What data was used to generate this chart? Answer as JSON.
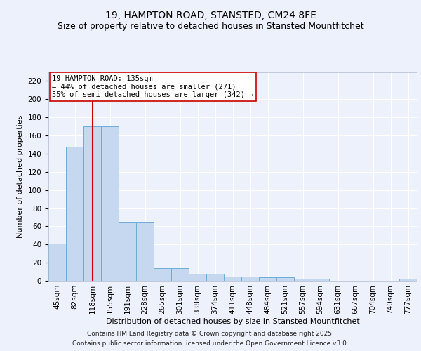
{
  "title": "19, HAMPTON ROAD, STANSTED, CM24 8FE",
  "subtitle": "Size of property relative to detached houses in Stansted Mountfitchet",
  "xlabel": "Distribution of detached houses by size in Stansted Mountfitchet",
  "ylabel": "Number of detached properties",
  "categories": [
    "45sqm",
    "82sqm",
    "118sqm",
    "155sqm",
    "191sqm",
    "228sqm",
    "265sqm",
    "301sqm",
    "338sqm",
    "374sqm",
    "411sqm",
    "448sqm",
    "484sqm",
    "521sqm",
    "557sqm",
    "594sqm",
    "631sqm",
    "667sqm",
    "704sqm",
    "740sqm",
    "777sqm"
  ],
  "values": [
    41,
    148,
    170,
    170,
    65,
    65,
    14,
    14,
    8,
    8,
    5,
    5,
    4,
    4,
    2,
    2,
    0,
    0,
    0,
    0,
    2
  ],
  "bar_color": "#c5d8f0",
  "bar_edge_color": "#6baed6",
  "red_line_index": 2,
  "red_line_color": "#cc0000",
  "annotation_line1": "19 HAMPTON ROAD: 135sqm",
  "annotation_line2": "← 44% of detached houses are smaller (271)",
  "annotation_line3": "55% of semi-detached houses are larger (342) →",
  "annotation_box_color": "#ffffff",
  "annotation_box_edge_color": "#cc0000",
  "ylim": [
    0,
    230
  ],
  "yticks": [
    0,
    20,
    40,
    60,
    80,
    100,
    120,
    140,
    160,
    180,
    200,
    220
  ],
  "background_color": "#edf1fb",
  "grid_color": "#ffffff",
  "footer_line1": "Contains HM Land Registry data © Crown copyright and database right 2025.",
  "footer_line2": "Contains public sector information licensed under the Open Government Licence v3.0.",
  "title_fontsize": 10,
  "subtitle_fontsize": 9,
  "axis_label_fontsize": 8,
  "tick_fontsize": 7.5,
  "annotation_fontsize": 7.5,
  "footer_fontsize": 6.5
}
